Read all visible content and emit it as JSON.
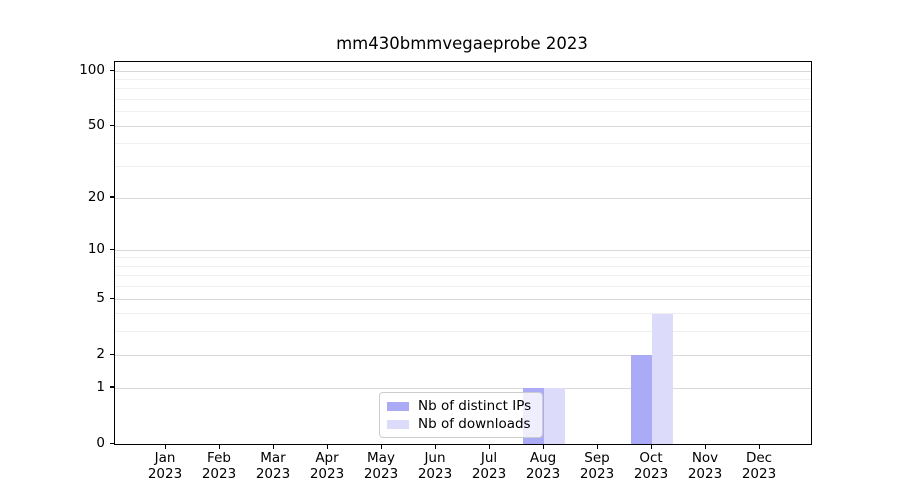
{
  "chart_data": {
    "type": "bar",
    "title": "mm430bmmvegaeprobe 2023",
    "categories": [
      "Jan 2023",
      "Feb 2023",
      "Mar 2023",
      "Apr 2023",
      "May 2023",
      "Jun 2023",
      "Jul 2023",
      "Aug 2023",
      "Sep 2023",
      "Oct 2023",
      "Nov 2023",
      "Dec 2023"
    ],
    "series": [
      {
        "name": "Nb of distinct IPs",
        "color": "#aaaaf6",
        "values": [
          0,
          0,
          0,
          0,
          0,
          0,
          0,
          1,
          0,
          2,
          0,
          0
        ]
      },
      {
        "name": "Nb of downloads",
        "color": "#dcdcfa",
        "values": [
          0,
          0,
          0,
          0,
          0,
          0,
          0,
          1,
          0,
          4,
          0,
          0
        ]
      }
    ],
    "yscale": "log1p",
    "ylim": [
      0,
      112
    ],
    "yticks": [
      100,
      50,
      20,
      10,
      5,
      2,
      1,
      0
    ],
    "minor_yticks": [
      90,
      80,
      70,
      60,
      40,
      30,
      9,
      8,
      7,
      6,
      4,
      3
    ],
    "grid": true,
    "legend_position": "lower-center",
    "colors": {
      "grid_major": "#d8d8d8",
      "grid_minor": "#efefef",
      "spine": "#000000",
      "text": "#000000",
      "legend_border": "#cccccc"
    }
  }
}
